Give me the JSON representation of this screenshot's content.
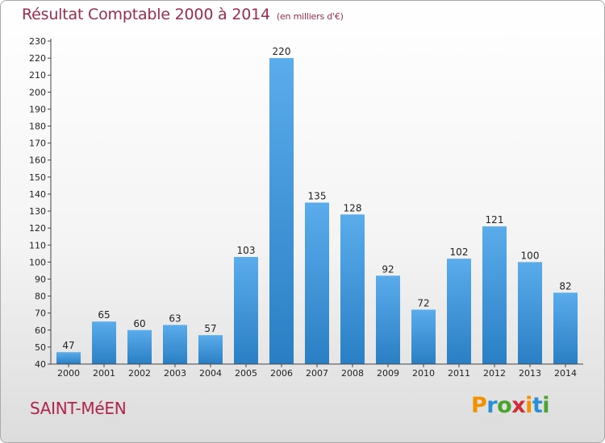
{
  "title": "Résultat Comptable 2000 à 2014",
  "title_unit": "(en milliers d'€)",
  "commune": "SAINT-MéEN",
  "logo": {
    "letters": [
      "P",
      "r",
      "o",
      "x",
      "i",
      "t",
      "i"
    ],
    "colors": [
      "#f29100",
      "#2a8fd6",
      "#4aa32e",
      "#d12c3c",
      "#f29100",
      "#2a8fd6",
      "#4aa32e"
    ]
  },
  "colors": {
    "bar_top": "#5aaceb",
    "bar_bottom": "#2a7fc4",
    "title": "#9b2c4e",
    "commune": "#b0244c"
  },
  "chart_data": {
    "type": "bar",
    "categories": [
      "2000",
      "2001",
      "2002",
      "2003",
      "2004",
      "2005",
      "2006",
      "2007",
      "2008",
      "2009",
      "2010",
      "2011",
      "2012",
      "2013",
      "2014"
    ],
    "values": [
      47,
      65,
      60,
      63,
      57,
      103,
      220,
      135,
      128,
      92,
      72,
      102,
      121,
      100,
      82
    ],
    "ylim": [
      40,
      230
    ],
    "yticks": [
      40,
      50,
      60,
      70,
      80,
      90,
      100,
      110,
      120,
      130,
      140,
      150,
      160,
      170,
      180,
      190,
      200,
      210,
      220,
      230
    ],
    "grid": false,
    "xlabel": "",
    "ylabel": ""
  }
}
